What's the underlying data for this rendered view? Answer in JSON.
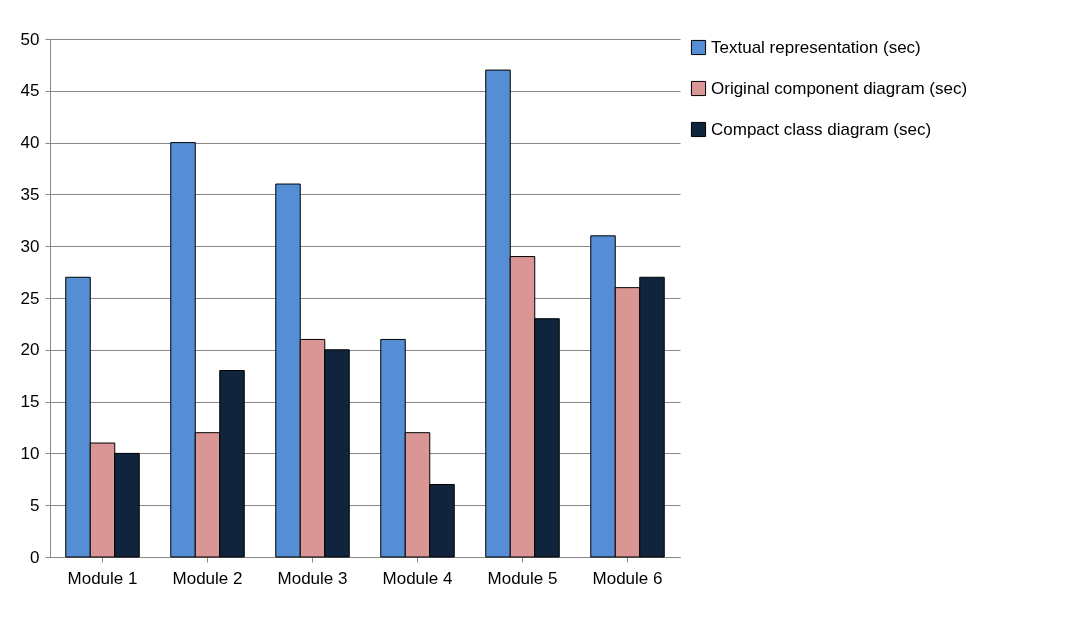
{
  "chart_data": {
    "type": "bar",
    "categories": [
      "Module 1",
      "Module 2",
      "Module 3",
      "Module 4",
      "Module 5",
      "Module 6"
    ],
    "series": [
      {
        "name": "Textual representation (sec)",
        "color": "#558ed5",
        "values": [
          27,
          40,
          36,
          21,
          47,
          31
        ]
      },
      {
        "name": "Original component diagram (sec)",
        "color": "#d99694",
        "values": [
          11,
          12,
          21,
          12,
          29,
          26
        ]
      },
      {
        "name": "Compact class diagram (sec)",
        "color": "#10243e",
        "values": [
          10,
          18,
          20,
          7,
          23,
          27
        ]
      }
    ],
    "ylim": [
      0,
      50
    ],
    "yticks": [
      0,
      5,
      10,
      15,
      20,
      25,
      30,
      35,
      40,
      45,
      50
    ],
    "grid": "y",
    "legend": "right"
  }
}
